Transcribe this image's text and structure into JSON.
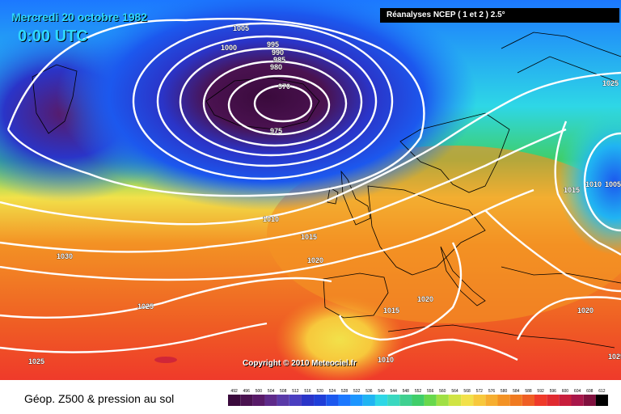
{
  "header": {
    "date": "Mercredi 20 octobre 1982",
    "time": "0:00 UTC",
    "source": "Réanalyses NCEP ( 1 et 2 ) 2.5°"
  },
  "copyright": "Copyright © 2010 Meteociel.fr",
  "caption": "Géop. Z500 & pression au sol",
  "colors": {
    "low_center": "#3a0a3c",
    "deep_blue": "#1f34c8",
    "mid_blue": "#1c7cff",
    "cyan": "#2ed7e6",
    "green": "#3fce6a",
    "yellow": "#f2e14a",
    "orange": "#f39224",
    "red": "#ef3a2a",
    "isobar": "#ffffff"
  },
  "isobar_labels": [
    "1005",
    "1000",
    "995",
    "990",
    "985",
    "980",
    "970",
    "975",
    "1010",
    "1015",
    "1020",
    "1030",
    "1025",
    "1025",
    "1015",
    "1020",
    "1010",
    "1025",
    "1015",
    "1010",
    "1005",
    "1020",
    "1025"
  ],
  "scale": {
    "labels": [
      "492",
      "496",
      "500",
      "504",
      "508",
      "512",
      "516",
      "520",
      "524",
      "528",
      "532",
      "536",
      "540",
      "544",
      "548",
      "552",
      "556",
      "560",
      "564",
      "568",
      "572",
      "576",
      "580",
      "584",
      "588",
      "592",
      "596",
      "600",
      "604",
      "608",
      "612"
    ],
    "colors": [
      "#3a0a3c",
      "#4a1250",
      "#581a68",
      "#5e2a8a",
      "#5a3aa8",
      "#4a3ec0",
      "#2a34c8",
      "#1f3ed8",
      "#1c58ee",
      "#1c78ff",
      "#1c96ff",
      "#20b4f2",
      "#2ed7e6",
      "#3ad8c0",
      "#3fd090",
      "#3fce6a",
      "#68d84c",
      "#a0e044",
      "#d0e444",
      "#f2e14a",
      "#f7c83c",
      "#f6ae30",
      "#f39224",
      "#f07a20",
      "#ef5e24",
      "#ef3a2a",
      "#e02a30",
      "#c81e3c",
      "#a8164a",
      "#80103e",
      "#000000"
    ]
  }
}
